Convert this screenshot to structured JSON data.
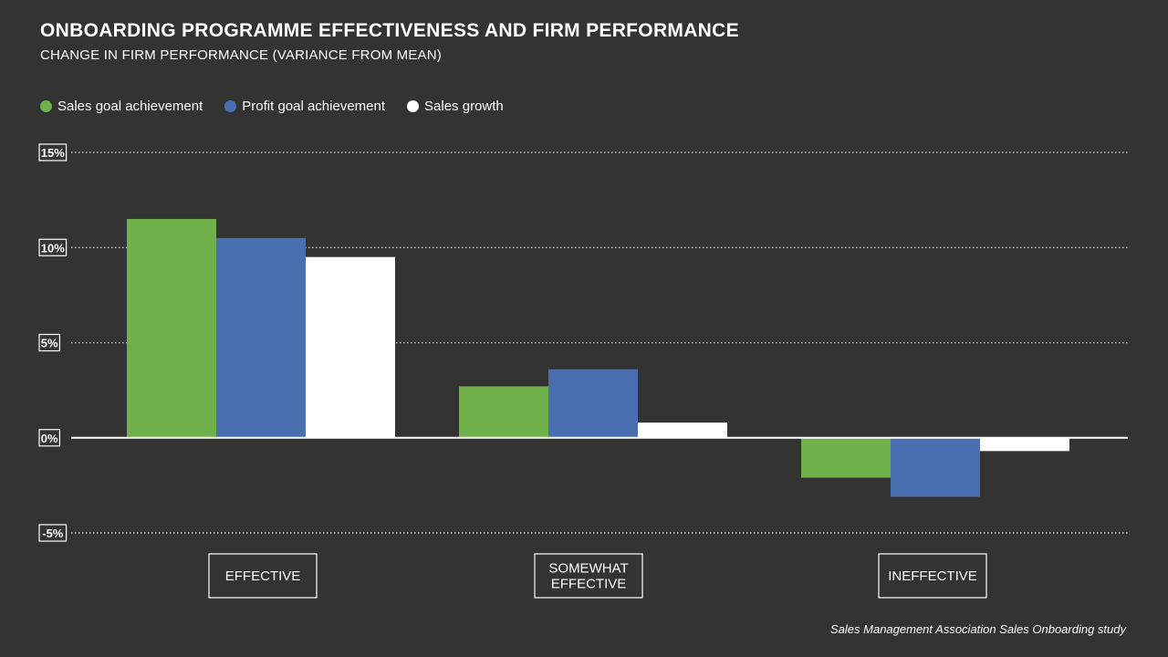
{
  "title": "ONBOARDING PROGRAMME EFFECTIVENESS AND FIRM PERFORMANCE",
  "subtitle": "CHANGE IN FIRM PERFORMANCE (VARIANCE FROM MEAN)",
  "source": "Sales Management Association Sales Onboarding study",
  "colors": {
    "background": "#333432",
    "sales_goal": "#6fb04b",
    "profit_goal": "#4a6fb0",
    "sales_growth": "#ffffff"
  },
  "chart_data": {
    "type": "bar",
    "categories": [
      "EFFECTIVE",
      "SOMEWHAT EFFECTIVE",
      "INEFFECTIVE"
    ],
    "category_lines": [
      [
        "EFFECTIVE"
      ],
      [
        "SOMEWHAT",
        "EFFECTIVE"
      ],
      [
        "INEFFECTIVE"
      ]
    ],
    "series": [
      {
        "name": "Sales goal achievement",
        "color": "#6fb04b",
        "values": [
          11.5,
          2.7,
          -2.1
        ]
      },
      {
        "name": "Profit goal achievement",
        "color": "#4a6fb0",
        "values": [
          10.5,
          3.6,
          -3.1
        ]
      },
      {
        "name": "Sales growth",
        "color": "#ffffff",
        "values": [
          9.5,
          0.8,
          -0.7
        ]
      }
    ],
    "ylim": [
      -5,
      15
    ],
    "yticks": [
      15,
      10,
      5,
      0,
      -5
    ],
    "ytick_labels": [
      "15%",
      "10%",
      "5%",
      "0%",
      "-5%"
    ],
    "grid": true,
    "legend_position": "top-left"
  }
}
